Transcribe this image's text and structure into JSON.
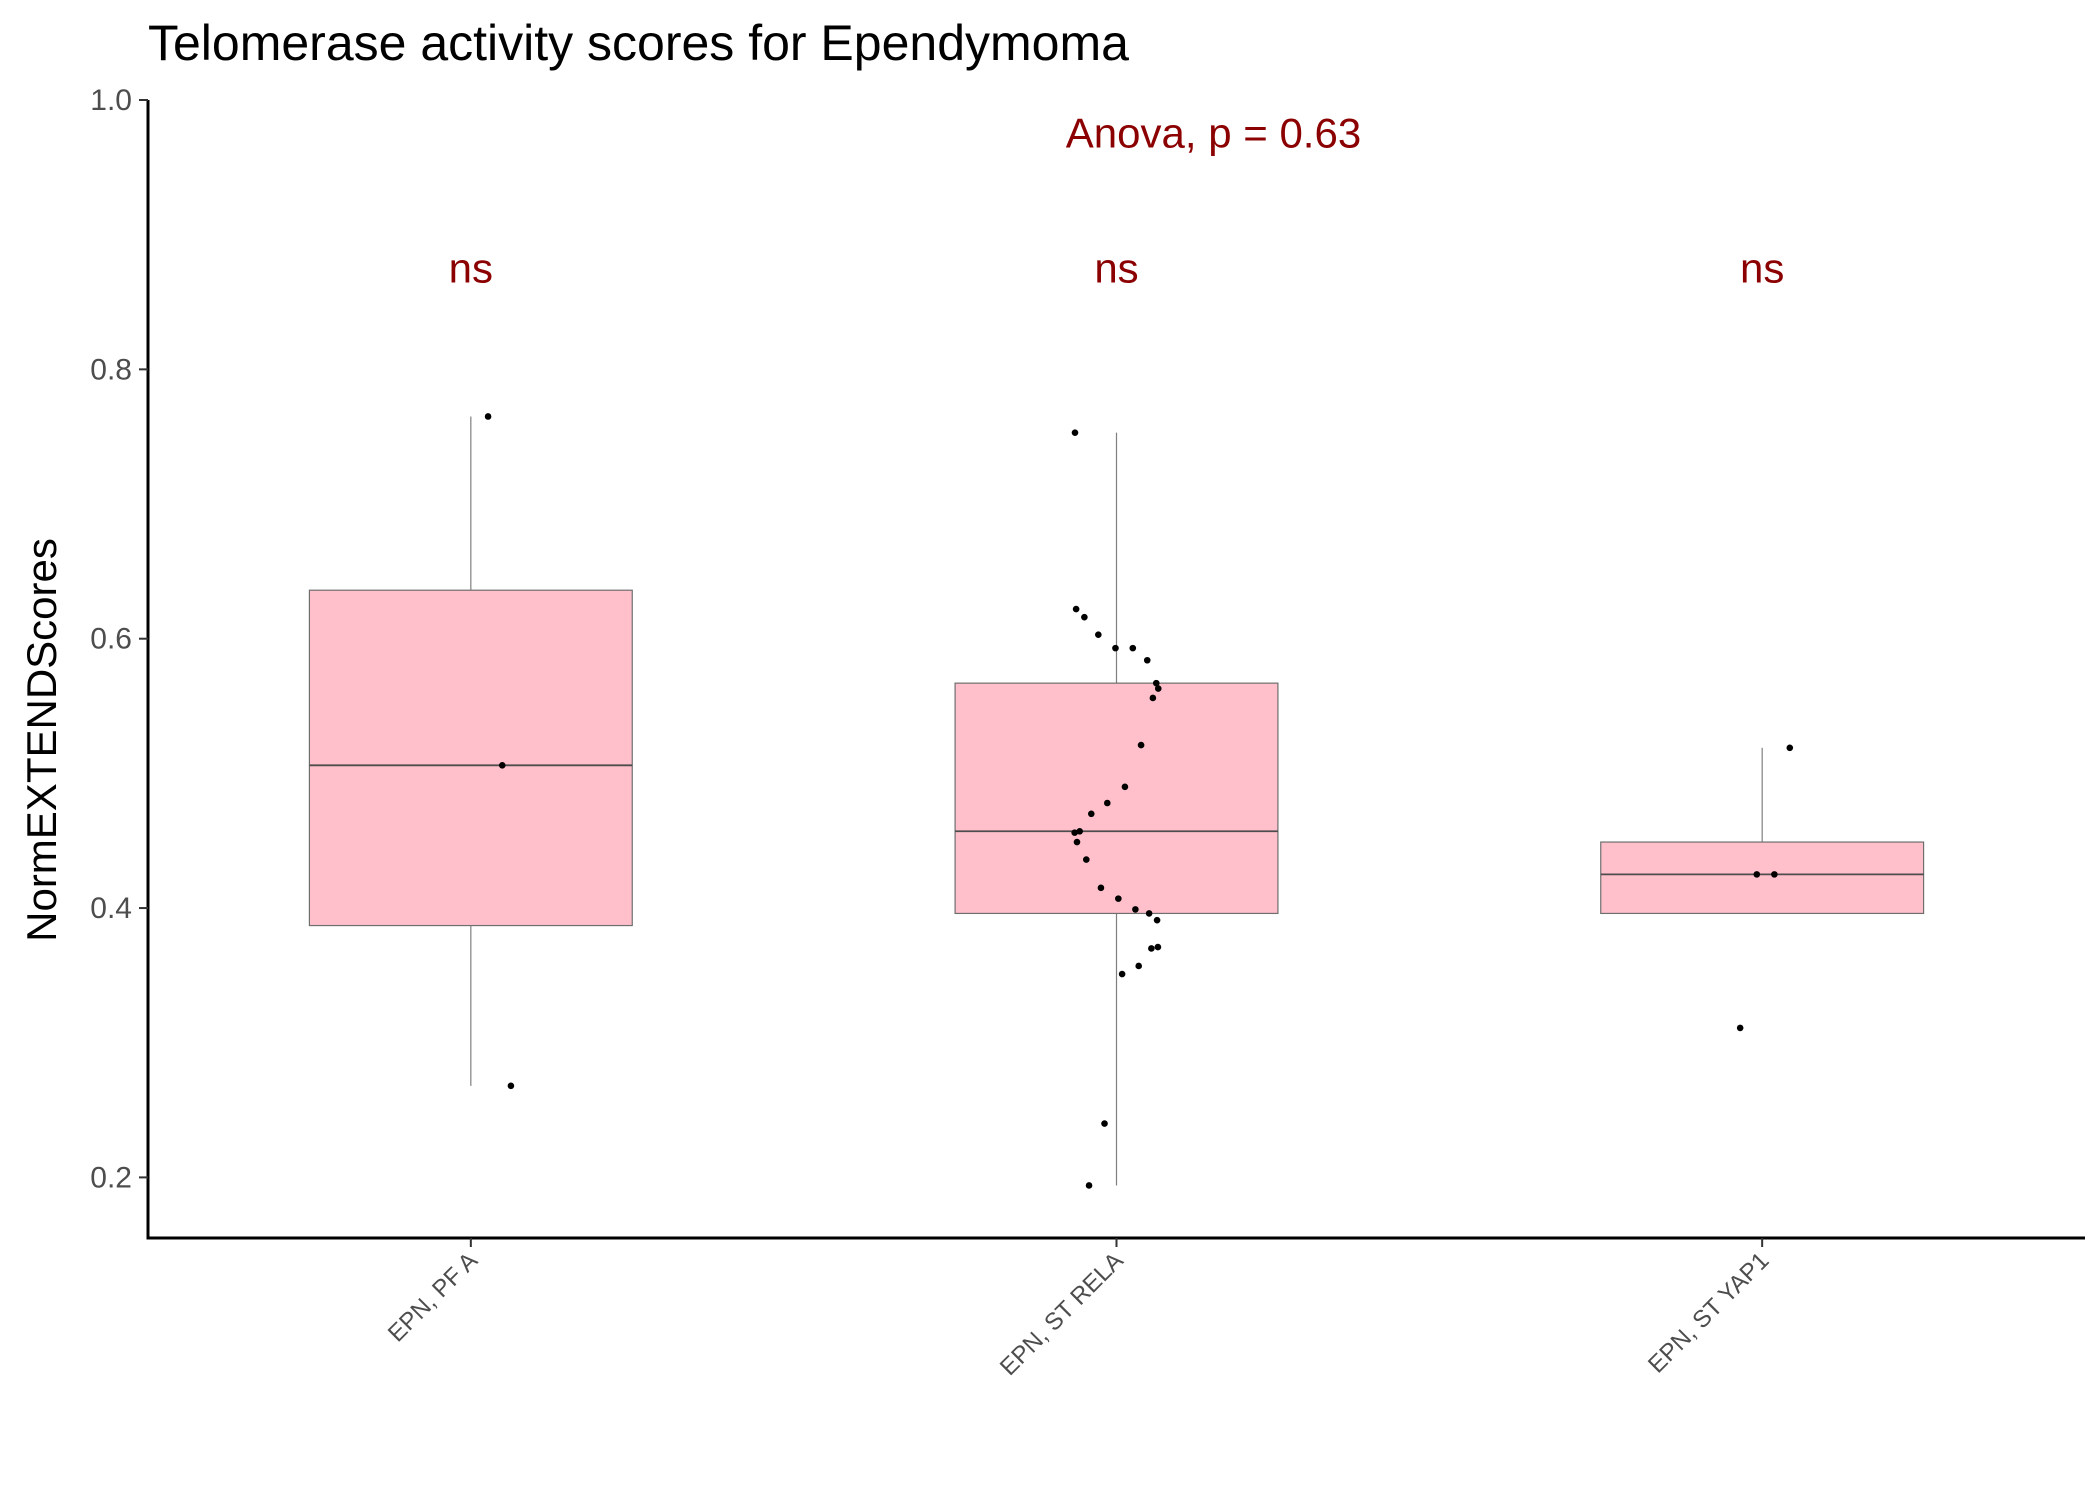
{
  "chart_data": {
    "type": "box",
    "title": "Telomerase activity scores for Ependymoma",
    "xlabel": "",
    "ylabel": "NormEXTENDScores",
    "ylim": [
      0.155,
      1.0
    ],
    "yticks": [
      "0.2",
      "0.4",
      "0.6",
      "0.8",
      "1.0"
    ],
    "grid": false,
    "legend": "none",
    "categories": [
      "EPN, PF A",
      "EPN, ST RELA",
      "EPN, ST YAP1"
    ],
    "box_color": "#ffc0cb",
    "annotation_color": "#8b0000",
    "test_label": "Anova, p = 0.63",
    "test_label_y": 0.975,
    "group_label_y": 0.875,
    "group_labels": [
      "ns",
      "ns",
      "ns"
    ],
    "boxes": [
      {
        "category": "EPN, PF A",
        "whisker_low": 0.268,
        "q1": 0.387,
        "median": 0.506,
        "q3": 0.636,
        "whisker_high": 0.765
      },
      {
        "category": "EPN, ST RELA",
        "whisker_low": 0.194,
        "q1": 0.396,
        "median": 0.457,
        "q3": 0.567,
        "whisker_high": 0.753
      },
      {
        "category": "EPN, ST YAP1",
        "whisker_low": 0.396,
        "q1": 0.396,
        "median": 0.425,
        "q3": 0.449,
        "whisker_high": 0.519
      }
    ],
    "points": [
      {
        "category": "EPN, PF A",
        "values": [
          0.765,
          0.506,
          0.268
        ]
      },
      {
        "category": "EPN, ST RELA",
        "values": [
          0.753,
          0.622,
          0.616,
          0.603,
          0.593,
          0.593,
          0.584,
          0.567,
          0.563,
          0.556,
          0.521,
          0.49,
          0.478,
          0.47,
          0.457,
          0.456,
          0.449,
          0.436,
          0.415,
          0.407,
          0.399,
          0.396,
          0.391,
          0.371,
          0.37,
          0.357,
          0.351,
          0.24,
          0.194
        ]
      },
      {
        "category": "EPN, ST YAP1",
        "values": [
          0.519,
          0.425,
          0.425,
          0.311
        ]
      }
    ]
  }
}
